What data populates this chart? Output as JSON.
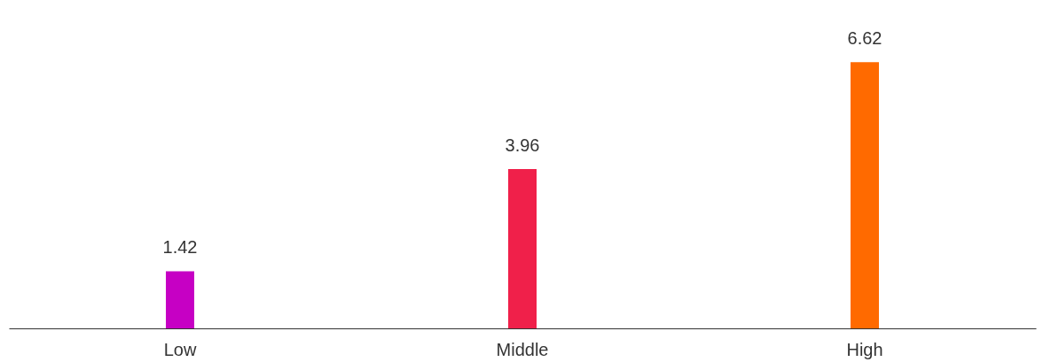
{
  "chart_data": {
    "type": "bar",
    "categories": [
      "Low",
      "Middle",
      "High"
    ],
    "values": [
      1.42,
      3.96,
      6.62
    ],
    "colors": [
      "#c600c4",
      "#f0204a",
      "#ff6a00"
    ],
    "data_labels": true,
    "grid": false
  }
}
